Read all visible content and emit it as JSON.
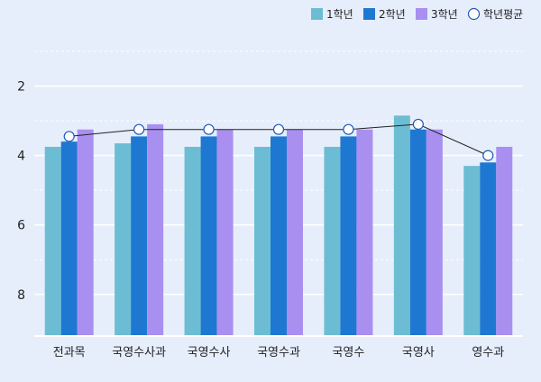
{
  "chart_data": {
    "type": "bar",
    "categories": [
      "전과목",
      "국영수사과",
      "국영수사",
      "국영수과",
      "국영수",
      "국영사",
      "영수과"
    ],
    "series": [
      {
        "name": "1학년",
        "color": "#6cbdd3",
        "values": [
          3.75,
          3.65,
          3.75,
          3.75,
          3.75,
          2.85,
          4.3
        ]
      },
      {
        "name": "2학년",
        "color": "#1e78d2",
        "values": [
          3.6,
          3.45,
          3.45,
          3.45,
          3.45,
          3.25,
          4.2
        ]
      },
      {
        "name": "3학년",
        "color": "#a98ff0",
        "values": [
          3.25,
          3.1,
          3.25,
          3.25,
          3.25,
          3.25,
          3.75
        ]
      }
    ],
    "line_series": {
      "name": "학년평균",
      "values": [
        3.45,
        3.25,
        3.25,
        3.25,
        3.25,
        3.1,
        4.0
      ]
    },
    "y_reversed": true,
    "ylim": [
      1,
      9.2
    ],
    "yticks": [
      "2",
      "4",
      "6",
      "8"
    ],
    "ytick_values": [
      2,
      4,
      6,
      8
    ],
    "grid_solid": [
      2,
      4,
      6,
      8
    ],
    "grid_dashed": [
      1,
      3,
      5,
      7
    ],
    "legend_position": "top-right"
  }
}
